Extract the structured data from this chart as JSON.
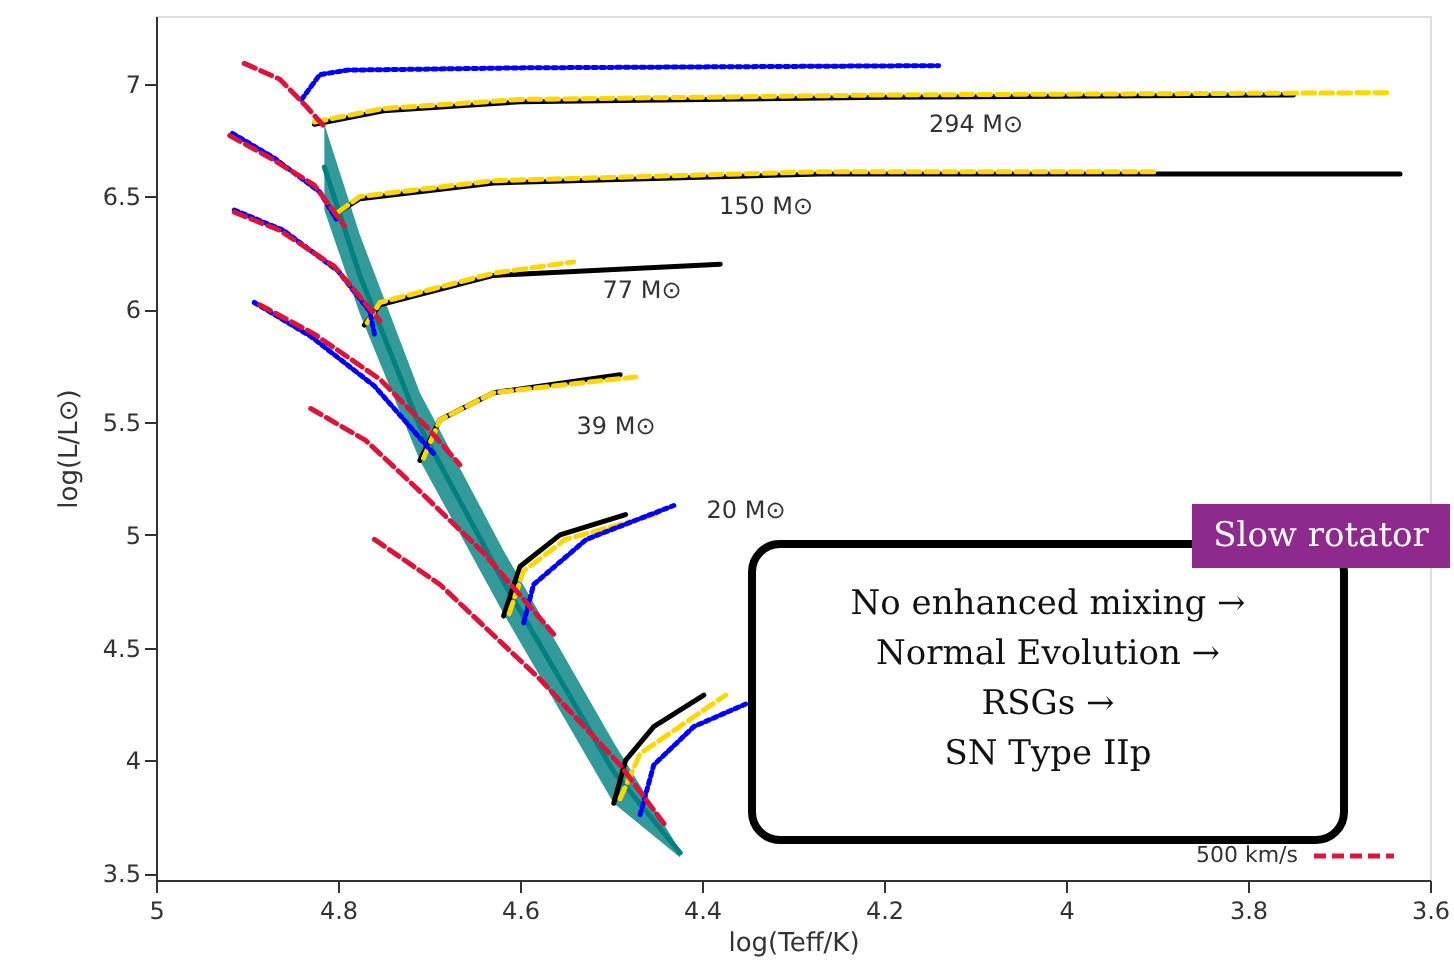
{
  "chart_data": {
    "type": "line",
    "xlabel": "log(Teff/K)",
    "ylabel": "log(L/L⊙)",
    "xlim": [
      5,
      3.6
    ],
    "ylim": [
      3.47,
      7.3
    ],
    "xticks": [
      5,
      4.8,
      4.6,
      4.4,
      4.2,
      4,
      3.8,
      3.6
    ],
    "yticks": [
      3.5,
      4,
      4.5,
      5,
      5.5,
      6,
      6.5,
      7
    ],
    "grid": false,
    "marker": "none",
    "legend": "bottom right",
    "series": [
      {
        "color": "#008080",
        "line_style": "solid",
        "x": [
          4.815,
          4.776,
          4.71,
          4.618,
          4.497,
          4.424
        ],
        "values": [
          6.63,
          6.15,
          5.48,
          4.79,
          3.95,
          3.59
        ],
        "lower": [
          6.44,
          5.98,
          5.33,
          4.65,
          3.81,
          3.57
        ],
        "upper": [
          6.82,
          6.33,
          5.63,
          4.93,
          4.08,
          3.6
        ]
      },
      {
        "color": "#000000",
        "line_style": "solid",
        "x": [
          4.826,
          4.75,
          4.6,
          4.4,
          4.2,
          3.75
        ],
        "values": [
          6.82,
          6.88,
          6.92,
          6.93,
          6.94,
          6.95
        ]
      },
      {
        "color": "#000000",
        "line_style": "solid",
        "x": [
          4.804,
          4.776,
          4.629,
          4.27,
          3.633
        ],
        "values": [
          6.42,
          6.49,
          6.56,
          6.6,
          6.6
        ]
      },
      {
        "color": "#000000",
        "line_style": "solid",
        "x": [
          4.771,
          4.754,
          4.629,
          4.38
        ],
        "values": [
          5.93,
          6.02,
          6.15,
          6.2
        ]
      },
      {
        "color": "#000000",
        "line_style": "solid",
        "x": [
          4.71,
          4.688,
          4.629,
          4.49
        ],
        "values": [
          5.33,
          5.51,
          5.63,
          5.71
        ]
      },
      {
        "color": "#000000",
        "line_style": "solid",
        "x": [
          4.618,
          4.6,
          4.556,
          4.484
        ],
        "values": [
          4.64,
          4.86,
          5.0,
          5.09
        ]
      },
      {
        "color": "#000000",
        "line_style": "solid",
        "x": [
          4.497,
          4.484,
          4.453,
          4.398
        ],
        "values": [
          3.81,
          4.0,
          4.15,
          4.29
        ]
      },
      {
        "color": "#ffd700",
        "line_style": "dashed",
        "x": [
          4.826,
          4.75,
          4.6,
          4.4,
          4.2,
          3.644
        ],
        "values": [
          6.83,
          6.89,
          6.93,
          6.94,
          6.95,
          6.96
        ]
      },
      {
        "color": "#ffd700",
        "line_style": "dashed",
        "x": [
          4.8,
          4.776,
          4.629,
          4.27,
          3.897
        ],
        "values": [
          6.43,
          6.5,
          6.57,
          6.61,
          6.61
        ]
      },
      {
        "color": "#ffd700",
        "line_style": "dashed",
        "x": [
          4.768,
          4.754,
          4.629,
          4.541
        ],
        "values": [
          5.94,
          6.03,
          6.16,
          6.21
        ]
      },
      {
        "color": "#ffd700",
        "line_style": "dashed",
        "x": [
          4.706,
          4.688,
          4.629,
          4.473
        ],
        "values": [
          5.34,
          5.51,
          5.63,
          5.7
        ]
      },
      {
        "color": "#ffd700",
        "line_style": "dashed",
        "x": [
          4.612,
          4.596,
          4.55,
          4.451
        ],
        "values": [
          4.65,
          4.84,
          4.98,
          5.09
        ]
      },
      {
        "color": "#ffd700",
        "line_style": "dashed",
        "x": [
          4.49,
          4.468,
          4.374
        ],
        "values": [
          3.83,
          4.03,
          4.29
        ]
      },
      {
        "color": "#0000ff",
        "line_style": "dotted",
        "x": [
          4.84,
          4.82,
          4.79,
          4.6,
          4.14
        ],
        "values": [
          6.93,
          7.04,
          7.06,
          7.07,
          7.08
        ]
      },
      {
        "color": "#0000ff",
        "line_style": "dotted",
        "x": [
          4.916,
          4.87,
          4.82,
          4.802
        ],
        "values": [
          6.78,
          6.67,
          6.52,
          6.4
        ]
      },
      {
        "color": "#0000ff",
        "line_style": "dotted",
        "x": [
          4.914,
          4.86,
          4.8,
          4.765,
          4.76
        ],
        "values": [
          6.44,
          6.35,
          6.17,
          5.99,
          5.89
        ]
      },
      {
        "color": "#0000ff",
        "line_style": "dotted",
        "x": [
          4.892,
          4.83,
          4.76,
          4.695
        ],
        "values": [
          6.03,
          5.88,
          5.66,
          5.36
        ]
      },
      {
        "color": "#0000ff",
        "line_style": "dotted",
        "x": [
          4.596,
          4.585,
          4.527,
          4.431
        ],
        "values": [
          4.61,
          4.78,
          4.98,
          5.13
        ]
      },
      {
        "color": "#0000ff",
        "line_style": "dotted",
        "x": [
          4.468,
          4.453,
          4.409,
          4.352
        ],
        "values": [
          3.76,
          3.98,
          4.15,
          4.25
        ]
      },
      {
        "name": "500 km/s",
        "color": "#dc143c",
        "line_style": "dashed",
        "x": [
          4.903,
          4.864,
          4.835,
          4.813
        ],
        "values": [
          7.09,
          7.02,
          6.9,
          6.8
        ]
      },
      {
        "color": "#dc143c",
        "line_style": "dashed",
        "x": [
          4.919,
          4.87,
          4.826,
          4.793
        ],
        "values": [
          6.77,
          6.66,
          6.55,
          6.37
        ]
      },
      {
        "color": "#dc143c",
        "line_style": "dashed",
        "x": [
          4.914,
          4.864,
          4.804,
          4.754
        ],
        "values": [
          6.43,
          6.35,
          6.19,
          5.95
        ]
      },
      {
        "color": "#dc143c",
        "line_style": "dashed",
        "x": [
          4.886,
          4.826,
          4.754,
          4.703,
          4.666
        ],
        "values": [
          6.02,
          5.89,
          5.69,
          5.48,
          5.31
        ]
      },
      {
        "color": "#dc143c",
        "line_style": "dashed",
        "x": [
          4.83,
          4.77,
          4.717,
          4.64,
          4.563
        ],
        "values": [
          5.56,
          5.42,
          5.22,
          4.92,
          4.56
        ]
      },
      {
        "color": "#dc143c",
        "line_style": "dashed",
        "x": [
          4.76,
          4.688,
          4.578,
          4.49,
          4.44
        ],
        "values": [
          4.98,
          4.78,
          4.36,
          3.98,
          3.71
        ]
      }
    ],
    "annotations": [
      "294 M⊙",
      "150 M⊙",
      "77 M⊙",
      "39 M⊙",
      "20 M⊙",
      "No enhanced mixing →\nNormal Evolution →\nRSGs →\nSN Type IIp",
      "Slow rotator"
    ]
  }
}
